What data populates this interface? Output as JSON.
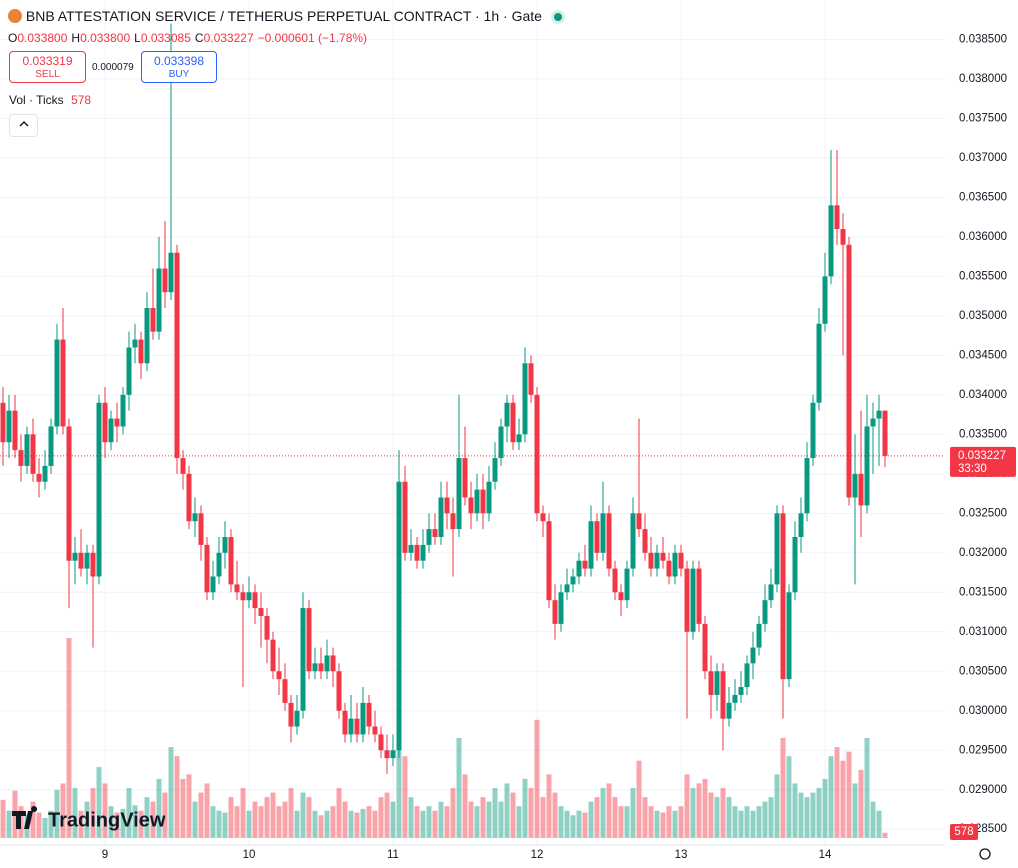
{
  "header": {
    "title": "BNB ATTESTATION SERVICE / TETHERUS PERPETUAL CONTRACT · 1h · Gate",
    "ohlc": [
      {
        "key": "O",
        "value": "0.033800"
      },
      {
        "key": "H",
        "value": "0.033800"
      },
      {
        "key": "L",
        "value": "0.033085"
      },
      {
        "key": "C",
        "value": "0.033227"
      }
    ],
    "change": "−0.000601 (−1.78%)",
    "sell": {
      "price": "0.033319",
      "label": "SELL"
    },
    "spread": "0.000079",
    "buy": {
      "price": "0.033398",
      "label": "BUY"
    },
    "volume_legend": {
      "label": "Vol · Ticks",
      "value": "578"
    }
  },
  "branding": "TradingView",
  "chart_data": {
    "type": "candlestick",
    "up_color": "#089981",
    "down_color": "#f23645",
    "ylim": [
      0.0283,
      0.039
    ],
    "yticks": [
      {
        "value": 0.0285,
        "label": "0.028500"
      },
      {
        "value": 0.029,
        "label": "0.029000"
      },
      {
        "value": 0.0295,
        "label": "0.029500"
      },
      {
        "value": 0.03,
        "label": "0.030000"
      },
      {
        "value": 0.0305,
        "label": "0.030500"
      },
      {
        "value": 0.031,
        "label": "0.031000"
      },
      {
        "value": 0.0315,
        "label": "0.031500"
      },
      {
        "value": 0.032,
        "label": "0.032000"
      },
      {
        "value": 0.0325,
        "label": "0.032500"
      },
      {
        "value": 0.033,
        "label": "0.033000"
      },
      {
        "value": 0.0335,
        "label": "0.033500"
      },
      {
        "value": 0.034,
        "label": "0.034000"
      },
      {
        "value": 0.0345,
        "label": "0.034500"
      },
      {
        "value": 0.035,
        "label": "0.035000"
      },
      {
        "value": 0.0355,
        "label": "0.035500"
      },
      {
        "value": 0.036,
        "label": "0.036000"
      },
      {
        "value": 0.0365,
        "label": "0.036500"
      },
      {
        "value": 0.037,
        "label": "0.037000"
      },
      {
        "value": 0.0375,
        "label": "0.037500"
      },
      {
        "value": 0.038,
        "label": "0.038000"
      },
      {
        "value": 0.0385,
        "label": "0.038500"
      }
    ],
    "xticks": [
      {
        "value": 17,
        "label": "9"
      },
      {
        "value": 41,
        "label": "10"
      },
      {
        "value": 65,
        "label": "11"
      },
      {
        "value": 89,
        "label": "12"
      },
      {
        "value": 113,
        "label": "13"
      },
      {
        "value": 137,
        "label": "14"
      }
    ],
    "last_price": 0.033227,
    "countdown": "33:30",
    "last_volume": 578,
    "open": [
      0.0339,
      0.0334,
      0.0338,
      0.0333,
      0.0331,
      0.0335,
      0.033,
      0.0329,
      0.0331,
      0.0336,
      0.0347,
      0.0336,
      0.0319,
      0.032,
      0.0318,
      0.032,
      0.0317,
      0.0339,
      0.0334,
      0.0337,
      0.0336,
      0.034,
      0.0346,
      0.0347,
      0.0344,
      0.0351,
      0.0348,
      0.0356,
      0.0353,
      0.0358,
      0.0332,
      0.033,
      0.0324,
      0.0325,
      0.0321,
      0.0315,
      0.0317,
      0.032,
      0.0322,
      0.0316,
      0.0315,
      0.0314,
      0.0315,
      0.0313,
      0.0312,
      0.0309,
      0.0305,
      0.0304,
      0.0301,
      0.0298,
      0.03,
      0.0313,
      0.0305,
      0.0306,
      0.0305,
      0.0307,
      0.0305,
      0.03,
      0.0297,
      0.0299,
      0.0297,
      0.0301,
      0.0298,
      0.0297,
      0.0295,
      0.0294,
      0.0295,
      0.0329,
      0.032,
      0.0321,
      0.0319,
      0.0321,
      0.0323,
      0.0322,
      0.0327,
      0.0325,
      0.0323,
      0.0332,
      0.0327,
      0.0325,
      0.0328,
      0.0325,
      0.0329,
      0.0332,
      0.0336,
      0.0339,
      0.0334,
      0.0335,
      0.0344,
      0.034,
      0.0325,
      0.0324,
      0.0314,
      0.0311,
      0.0315,
      0.0316,
      0.0317,
      0.0319,
      0.0318,
      0.0324,
      0.032,
      0.0325,
      0.0318,
      0.0315,
      0.0314,
      0.0318,
      0.0325,
      0.0323,
      0.032,
      0.0318,
      0.032,
      0.0319,
      0.0317,
      0.032,
      0.0318,
      0.031,
      0.0318,
      0.0311,
      0.0305,
      0.0302,
      0.0305,
      0.0299,
      0.0301,
      0.0302,
      0.0303,
      0.0306,
      0.0308,
      0.0311,
      0.0314,
      0.0316,
      0.0325,
      0.0304,
      0.0315,
      0.0322,
      0.0325,
      0.0332,
      0.0339,
      0.0349,
      0.0355,
      0.0364,
      0.0361,
      0.0359,
      0.0327,
      0.033,
      0.0326,
      0.0336,
      0.0337,
      0.0338
    ],
    "high": [
      0.0341,
      0.034,
      0.034,
      0.0335,
      0.0336,
      0.0337,
      0.0332,
      0.0333,
      0.0337,
      0.0349,
      0.0351,
      0.0337,
      0.0322,
      0.0323,
      0.0321,
      0.0321,
      0.034,
      0.0341,
      0.0338,
      0.0339,
      0.0341,
      0.0348,
      0.0349,
      0.0348,
      0.0353,
      0.0356,
      0.036,
      0.0362,
      0.0387,
      0.0359,
      0.0333,
      0.0331,
      0.0327,
      0.0326,
      0.0322,
      0.0319,
      0.0322,
      0.0324,
      0.0323,
      0.0319,
      0.0316,
      0.0317,
      0.0316,
      0.0315,
      0.0313,
      0.031,
      0.0308,
      0.0306,
      0.0302,
      0.0302,
      0.0315,
      0.0314,
      0.0308,
      0.0308,
      0.0309,
      0.0308,
      0.0306,
      0.0301,
      0.0302,
      0.0301,
      0.0303,
      0.0302,
      0.03,
      0.0298,
      0.0297,
      0.0297,
      0.0333,
      0.0331,
      0.0323,
      0.0322,
      0.0323,
      0.0325,
      0.0325,
      0.0329,
      0.0329,
      0.0327,
      0.034,
      0.0336,
      0.0329,
      0.033,
      0.033,
      0.0331,
      0.0334,
      0.0337,
      0.034,
      0.034,
      0.0337,
      0.0346,
      0.0345,
      0.0341,
      0.0326,
      0.0325,
      0.0316,
      0.0316,
      0.0318,
      0.0318,
      0.032,
      0.0321,
      0.0326,
      0.0325,
      0.0329,
      0.0326,
      0.0319,
      0.0316,
      0.0319,
      0.0327,
      0.0337,
      0.0325,
      0.0322,
      0.0321,
      0.0322,
      0.032,
      0.0321,
      0.0321,
      0.0319,
      0.0319,
      0.0319,
      0.0312,
      0.0307,
      0.0306,
      0.0306,
      0.0303,
      0.0304,
      0.0305,
      0.0307,
      0.031,
      0.0312,
      0.0316,
      0.0318,
      0.0326,
      0.0326,
      0.0316,
      0.0324,
      0.0327,
      0.0334,
      0.034,
      0.0351,
      0.0358,
      0.0371,
      0.0371,
      0.0363,
      0.036,
      0.0335,
      0.0338,
      0.034,
      0.0339,
      0.034,
      0.0338
    ],
    "low": [
      0.0331,
      0.0332,
      0.0332,
      0.0329,
      0.033,
      0.0329,
      0.0327,
      0.0328,
      0.033,
      0.0335,
      0.0335,
      0.0313,
      0.0316,
      0.0317,
      0.0316,
      0.0308,
      0.0316,
      0.0332,
      0.0333,
      0.0334,
      0.0335,
      0.0338,
      0.0344,
      0.0342,
      0.0343,
      0.0347,
      0.0347,
      0.0351,
      0.0352,
      0.033,
      0.0328,
      0.0323,
      0.0322,
      0.0319,
      0.0314,
      0.0314,
      0.0316,
      0.0318,
      0.0315,
      0.0314,
      0.0303,
      0.0313,
      0.0311,
      0.0308,
      0.0306,
      0.0304,
      0.0302,
      0.03,
      0.0296,
      0.0297,
      0.0299,
      0.0304,
      0.0304,
      0.0304,
      0.0304,
      0.0303,
      0.0299,
      0.0296,
      0.0296,
      0.0296,
      0.0296,
      0.0297,
      0.0296,
      0.0294,
      0.0292,
      0.0293,
      0.0294,
      0.0319,
      0.0319,
      0.0318,
      0.0318,
      0.032,
      0.0321,
      0.0321,
      0.0323,
      0.0317,
      0.0322,
      0.0326,
      0.0323,
      0.0324,
      0.0323,
      0.0324,
      0.0328,
      0.0331,
      0.0334,
      0.0333,
      0.0333,
      0.0334,
      0.0339,
      0.0324,
      0.0322,
      0.0313,
      0.0309,
      0.031,
      0.0314,
      0.0315,
      0.0316,
      0.0317,
      0.0317,
      0.0319,
      0.0319,
      0.0317,
      0.0314,
      0.0312,
      0.0313,
      0.0317,
      0.0322,
      0.0319,
      0.0317,
      0.0317,
      0.0318,
      0.0316,
      0.0316,
      0.0317,
      0.0299,
      0.0309,
      0.031,
      0.0304,
      0.0299,
      0.03,
      0.0295,
      0.0298,
      0.03,
      0.0301,
      0.0302,
      0.0304,
      0.0307,
      0.031,
      0.0313,
      0.0315,
      0.0299,
      0.0303,
      0.0314,
      0.032,
      0.0324,
      0.0331,
      0.0338,
      0.0348,
      0.0354,
      0.0359,
      0.0345,
      0.0326,
      0.0316,
      0.0322,
      0.0325,
      0.033,
      0.0331,
      0.033085
    ],
    "close": [
      0.0334,
      0.0338,
      0.0333,
      0.0331,
      0.0335,
      0.033,
      0.0329,
      0.0331,
      0.0336,
      0.0347,
      0.0336,
      0.0319,
      0.032,
      0.0318,
      0.032,
      0.0317,
      0.0339,
      0.0334,
      0.0337,
      0.0336,
      0.034,
      0.0346,
      0.0347,
      0.0344,
      0.0351,
      0.0348,
      0.0356,
      0.0353,
      0.0358,
      0.0332,
      0.033,
      0.0324,
      0.0325,
      0.0321,
      0.0315,
      0.0317,
      0.032,
      0.0322,
      0.0316,
      0.0315,
      0.0314,
      0.0315,
      0.0313,
      0.0312,
      0.0309,
      0.0305,
      0.0304,
      0.0301,
      0.0298,
      0.03,
      0.0313,
      0.0305,
      0.0306,
      0.0305,
      0.0307,
      0.0305,
      0.03,
      0.0297,
      0.0299,
      0.0297,
      0.0301,
      0.0298,
      0.0297,
      0.0295,
      0.0294,
      0.0295,
      0.0329,
      0.032,
      0.0321,
      0.0319,
      0.0321,
      0.0323,
      0.0322,
      0.0327,
      0.0325,
      0.0323,
      0.0332,
      0.0327,
      0.0325,
      0.0328,
      0.0325,
      0.0329,
      0.0332,
      0.0336,
      0.0339,
      0.0334,
      0.0335,
      0.0344,
      0.034,
      0.0325,
      0.0324,
      0.0314,
      0.0311,
      0.0315,
      0.0316,
      0.0317,
      0.0319,
      0.0318,
      0.0324,
      0.032,
      0.0325,
      0.0318,
      0.0315,
      0.0314,
      0.0318,
      0.0325,
      0.0323,
      0.032,
      0.0318,
      0.032,
      0.0319,
      0.0317,
      0.032,
      0.0318,
      0.031,
      0.0318,
      0.0311,
      0.0305,
      0.0302,
      0.0305,
      0.0299,
      0.0301,
      0.0302,
      0.0303,
      0.0306,
      0.0308,
      0.0311,
      0.0314,
      0.0316,
      0.0325,
      0.0304,
      0.0315,
      0.0322,
      0.0325,
      0.0332,
      0.0339,
      0.0349,
      0.0355,
      0.0364,
      0.0361,
      0.0359,
      0.0327,
      0.033,
      0.0326,
      0.0336,
      0.0337,
      0.0338,
      0.033227
    ],
    "volume": [
      4200,
      3000,
      5200,
      3500,
      2500,
      4000,
      2800,
      2200,
      3000,
      5300,
      6000,
      22000,
      5500,
      3000,
      4000,
      5500,
      7800,
      6000,
      3500,
      2800,
      3200,
      5500,
      3600,
      3000,
      4500,
      4000,
      6500,
      5000,
      10000,
      9000,
      6500,
      7000,
      4000,
      5000,
      6000,
      3500,
      3000,
      2800,
      4500,
      3500,
      5500,
      3000,
      4000,
      3500,
      4500,
      5000,
      3500,
      4000,
      5500,
      3000,
      5000,
      4500,
      3000,
      2500,
      3000,
      3500,
      5500,
      4000,
      3000,
      2800,
      3200,
      3500,
      3000,
      4500,
      5000,
      4000,
      12500,
      9000,
      4500,
      3500,
      3000,
      3500,
      3000,
      4000,
      3500,
      5500,
      11000,
      7000,
      4000,
      3500,
      4500,
      4000,
      5500,
      4000,
      6000,
      5000,
      3500,
      6500,
      5500,
      13000,
      4500,
      7000,
      5000,
      3500,
      3000,
      2500,
      3000,
      2800,
      4000,
      4500,
      5500,
      6000,
      4500,
      3500,
      3500,
      5500,
      8500,
      4500,
      3500,
      3000,
      2800,
      3500,
      3000,
      3500,
      7000,
      5500,
      6000,
      6500,
      5000,
      4500,
      5500,
      4500,
      3500,
      3000,
      3500,
      3000,
      3500,
      4000,
      4500,
      7000,
      11000,
      9000,
      6000,
      5000,
      4500,
      5000,
      5500,
      6500,
      9000,
      10000,
      8500,
      9500,
      6000,
      7500,
      11000,
      4000,
      3000,
      578
    ]
  }
}
